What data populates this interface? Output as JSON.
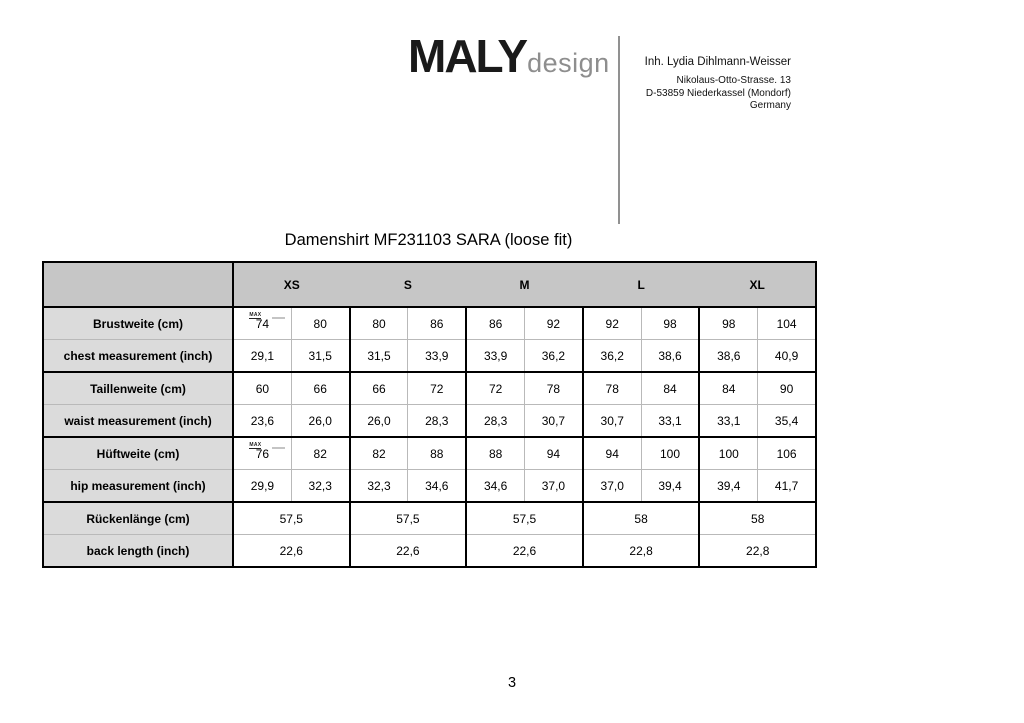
{
  "logo": {
    "brand": "MALY",
    "sub": "design"
  },
  "contact": {
    "owner": "Inh. Lydia Dihlmann-Weisser",
    "address_lines": [
      "Nikolaus-Otto-Strasse. 13",
      "D-53859 Niederkassel (Mondorf)",
      "Germany"
    ]
  },
  "title": "Damenshirt MF231103 SARA (loose fit)",
  "table": {
    "size_headers": [
      "XS",
      "S",
      "M",
      "L",
      "XL"
    ],
    "annotation": "MAX",
    "rows": [
      {
        "label": "Brustweite (cm)",
        "annotated": true,
        "span": false,
        "values": [
          "74",
          "80",
          "80",
          "86",
          "86",
          "92",
          "92",
          "98",
          "98",
          "104"
        ]
      },
      {
        "label": "chest measurement (inch)",
        "annotated": false,
        "span": false,
        "values": [
          "29,1",
          "31,5",
          "31,5",
          "33,9",
          "33,9",
          "36,2",
          "36,2",
          "38,6",
          "38,6",
          "40,9"
        ]
      },
      {
        "label": "Taillenweite (cm)",
        "annotated": false,
        "span": false,
        "values": [
          "60",
          "66",
          "66",
          "72",
          "72",
          "78",
          "78",
          "84",
          "84",
          "90"
        ]
      },
      {
        "label": "waist measurement (inch)",
        "annotated": false,
        "span": false,
        "values": [
          "23,6",
          "26,0",
          "26,0",
          "28,3",
          "28,3",
          "30,7",
          "30,7",
          "33,1",
          "33,1",
          "35,4"
        ]
      },
      {
        "label": "Hüftweite (cm)",
        "annotated": true,
        "span": false,
        "values": [
          "76",
          "82",
          "82",
          "88",
          "88",
          "94",
          "94",
          "100",
          "100",
          "106"
        ]
      },
      {
        "label": "hip measurement (inch)",
        "annotated": false,
        "span": false,
        "values": [
          "29,9",
          "32,3",
          "32,3",
          "34,6",
          "34,6",
          "37,0",
          "37,0",
          "39,4",
          "39,4",
          "41,7"
        ]
      },
      {
        "label": "Rückenlänge (cm)",
        "annotated": false,
        "span": true,
        "values": [
          "57,5",
          "57,5",
          "57,5",
          "58",
          "58"
        ]
      },
      {
        "label": "back length  (inch)",
        "annotated": false,
        "span": true,
        "values": [
          "22,6",
          "22,6",
          "22,6",
          "22,8",
          "22,8"
        ]
      }
    ]
  },
  "page_number": "3",
  "colors": {
    "header_bg": "#c6c6c6",
    "label_bg": "#dbdbdb",
    "border_dark": "#000000",
    "border_light": "#b9b9b9",
    "logo_sub_gray": "#8e8e8e"
  }
}
